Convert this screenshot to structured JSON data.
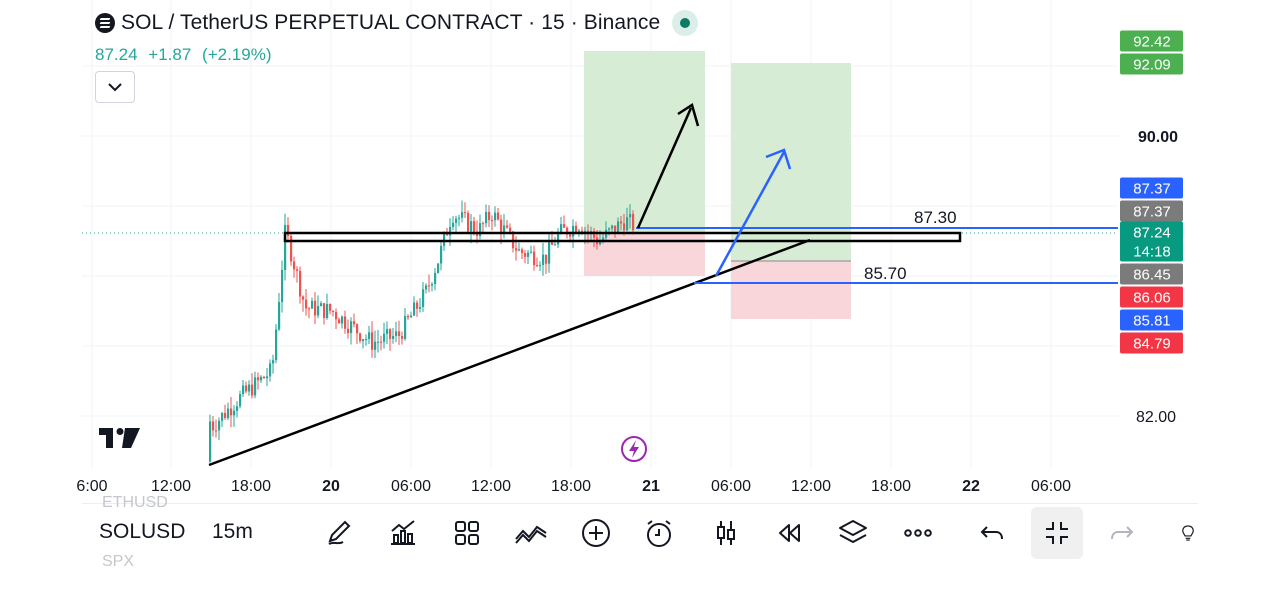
{
  "header": {
    "title": "SOL / TetherUS PERPETUAL CONTRACT · 15 · Binance",
    "price": "87.24",
    "change": "+1.87",
    "change_pct": "(+2.19%)"
  },
  "colors": {
    "up": "#26a69a",
    "down": "#ef5350",
    "profit_zone": "#d7ecd4",
    "loss_zone": "#f9d6da",
    "blue": "#2962ff",
    "accent_green": "#4caf50",
    "accent_red": "#f23645",
    "grey_label": "#7b7b7b"
  },
  "chart_data": {
    "type": "candlestick",
    "symbol": "SOLUSDT.P",
    "exchange": "Binance",
    "interval": "15",
    "y_scale": {
      "min": 80.6,
      "max": 93.0
    },
    "x_ticks": [
      "6:00",
      "12:00",
      "18:00",
      "20",
      "06:00",
      "12:00",
      "18:00",
      "21",
      "06:00",
      "12:00",
      "18:00",
      "22",
      "06:00"
    ],
    "y_ticks": [
      "90.00",
      "82.00"
    ],
    "price_labels": [
      {
        "value": "92.42",
        "color": "#4caf50"
      },
      {
        "value": "92.09",
        "color": "#4caf50"
      },
      {
        "value": "87.37",
        "color": "#2962ff"
      },
      {
        "value": "87.37",
        "color": "#7b7b7b"
      },
      {
        "value": "87.24",
        "sub": "14:18",
        "color": "#089981"
      },
      {
        "value": "86.45",
        "color": "#7b7b7b"
      },
      {
        "value": "86.06",
        "color": "#f23645"
      },
      {
        "value": "85.81",
        "color": "#2962ff"
      },
      {
        "value": "84.79",
        "color": "#f23645"
      }
    ],
    "price_series_approx": [
      {
        "x": "19 13:00",
        "close": 80.7
      },
      {
        "x": "19 13:30",
        "close": 83.2
      },
      {
        "x": "19 15:00",
        "close": 81.7
      },
      {
        "x": "19 17:00",
        "close": 82.5
      },
      {
        "x": "19 19:30",
        "close": 83.3
      },
      {
        "x": "19 20:30",
        "close": 87.3
      },
      {
        "x": "19 22:00",
        "close": 85.1
      },
      {
        "x": "20 00:00",
        "close": 85.0
      },
      {
        "x": "20 03:00",
        "close": 84.1
      },
      {
        "x": "20 05:00",
        "close": 84.3
      },
      {
        "x": "20 07:00",
        "close": 85.5
      },
      {
        "x": "20 08:00",
        "close": 86.5
      },
      {
        "x": "20 09:00",
        "close": 87.8
      },
      {
        "x": "20 11:00",
        "close": 87.3
      },
      {
        "x": "20 12:00",
        "close": 87.8
      },
      {
        "x": "20 14:00",
        "close": 86.7
      },
      {
        "x": "20 16:00",
        "close": 86.5
      },
      {
        "x": "20 17:00",
        "close": 87.2
      },
      {
        "x": "20 18:30",
        "close": 87.5
      },
      {
        "x": "20 20:00",
        "close": 87.0
      },
      {
        "x": "20 22:00",
        "close": 87.6
      },
      {
        "x": "20 23:30",
        "close": 87.24
      }
    ],
    "annotations": [
      {
        "type": "horizontal_line",
        "label": "87.30",
        "value": 87.3
      },
      {
        "type": "horizontal_line",
        "label": "85.70",
        "value": 85.7
      }
    ],
    "grid": true,
    "legend": "none"
  },
  "toolbar": {
    "symbol": "SOLUSD",
    "symbol_prev": "ETHUSD",
    "symbol_next": "SPX",
    "interval": "15m",
    "tools": [
      "pencil-icon",
      "indicators-icon",
      "grid-icon",
      "compare-icon",
      "plus-icon",
      "alarm-icon",
      "candles-icon",
      "replay-icon",
      "layers-icon",
      "more-icon",
      "undo-icon",
      "collapse-icon",
      "redo-icon",
      "lightbulb-icon"
    ]
  },
  "misc": {
    "lightning_icon": "lightning-icon"
  }
}
